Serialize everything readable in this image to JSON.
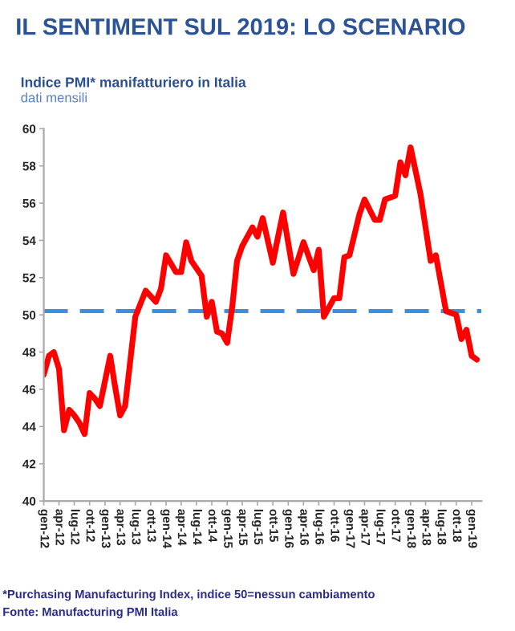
{
  "chart_data": {
    "type": "line",
    "title": "IL SENTIMENT SUL 2019: LO SCENARIO",
    "subtitle": "Indice PMI* manifatturiero in Italia",
    "annotations": [
      "dati mensili",
      "*Purchasing Manufacturing Index, indice 50=nessun cambiamento",
      "Fonte: Manufacturing PMI Italia"
    ],
    "series": [
      {
        "color": "#ff0000",
        "x": [
          "2012-01",
          "2012-02",
          "2012-03",
          "2012-04",
          "2012-05",
          "2012-06",
          "2012-07",
          "2012-08",
          "2012-09",
          "2012-10",
          "2012-11",
          "2012-12",
          "2013-02",
          "2013-03",
          "2013-04",
          "2013-05",
          "2013-07",
          "2013-09",
          "2013-11",
          "2013-12",
          "2014-01",
          "2014-03",
          "2014-04",
          "2014-05",
          "2014-06",
          "2014-08",
          "2014-09",
          "2014-10",
          "2014-11",
          "2014-12",
          "2015-01",
          "2015-02",
          "2015-03",
          "2015-04",
          "2015-06",
          "2015-07",
          "2015-08",
          "2015-10",
          "2015-11",
          "2015-12",
          "2016-02",
          "2016-04",
          "2016-06",
          "2016-07",
          "2016-08",
          "2016-10",
          "2016-11",
          "2016-12",
          "2017-01",
          "2017-03",
          "2017-04",
          "2017-06",
          "2017-07",
          "2017-08",
          "2017-10",
          "2017-11",
          "2017-12",
          "2018-01",
          "2018-03",
          "2018-05",
          "2018-06",
          "2018-08",
          "2018-10",
          "2018-11",
          "2018-12",
          "2019-01",
          "2019-02"
        ],
        "values": [
          46.8,
          47.8,
          48.0,
          47.1,
          43.8,
          44.9,
          44.6,
          44.2,
          43.6,
          45.8,
          45.5,
          45.1,
          47.8,
          46.2,
          44.6,
          45.1,
          49.9,
          51.3,
          50.7,
          51.4,
          53.2,
          52.3,
          52.3,
          53.9,
          52.9,
          52.1,
          49.9,
          50.7,
          49.1,
          49.0,
          48.5,
          50.5,
          52.9,
          53.7,
          54.7,
          54.2,
          55.2,
          52.8,
          54.2,
          55.5,
          52.2,
          53.9,
          52.4,
          53.5,
          49.9,
          50.9,
          50.9,
          53.1,
          53.2,
          55.4,
          56.2,
          55.1,
          55.1,
          56.2,
          56.4,
          58.2,
          57.5,
          59.0,
          56.5,
          52.9,
          53.2,
          50.2,
          50.0,
          48.7,
          49.2,
          47.8,
          47.6
        ]
      }
    ],
    "xlim": [
      "2012-01",
      "2019-03"
    ],
    "xticks": [
      {
        "value": "2012-01",
        "label": "gen-12"
      },
      {
        "value": "2012-04",
        "label": "apr-12"
      },
      {
        "value": "2012-07",
        "label": "lug-12"
      },
      {
        "value": "2012-10",
        "label": "ott-12"
      },
      {
        "value": "2013-01",
        "label": "gen-13"
      },
      {
        "value": "2013-04",
        "label": "apr-13"
      },
      {
        "value": "2013-07",
        "label": "lug-13"
      },
      {
        "value": "2013-10",
        "label": "ott-13"
      },
      {
        "value": "2014-01",
        "label": "gen-14"
      },
      {
        "value": "2014-04",
        "label": "apr-14"
      },
      {
        "value": "2014-07",
        "label": "lug-14"
      },
      {
        "value": "2014-10",
        "label": "ott-14"
      },
      {
        "value": "2015-01",
        "label": "gen-15"
      },
      {
        "value": "2015-04",
        "label": "apr-15"
      },
      {
        "value": "2015-07",
        "label": "lug-15"
      },
      {
        "value": "2015-10",
        "label": "ott-15"
      },
      {
        "value": "2016-01",
        "label": "gen-16"
      },
      {
        "value": "2016-04",
        "label": "apr-16"
      },
      {
        "value": "2016-07",
        "label": "lug-16"
      },
      {
        "value": "2016-10",
        "label": "ott-16"
      },
      {
        "value": "2017-01",
        "label": "gen-17"
      },
      {
        "value": "2017-04",
        "label": "apr-17"
      },
      {
        "value": "2017-07",
        "label": "lug-17"
      },
      {
        "value": "2017-10",
        "label": "ott-17"
      },
      {
        "value": "2018-01",
        "label": "gen-18"
      },
      {
        "value": "2018-04",
        "label": "apr-18"
      },
      {
        "value": "2018-07",
        "label": "lug-18"
      },
      {
        "value": "2018-10",
        "label": "ott-18"
      },
      {
        "value": "2019-01",
        "label": "gen-19"
      }
    ],
    "ylim": [
      40,
      60
    ],
    "yticks": [
      40,
      42,
      44,
      46,
      48,
      50,
      52,
      54,
      56,
      58,
      60
    ],
    "ref_lines": [
      {
        "axis": "y",
        "value": 50.2,
        "color": "#3d8fd9",
        "line_style": "dashed"
      }
    ],
    "grid": false,
    "marker": "none",
    "line_style": "solid"
  }
}
